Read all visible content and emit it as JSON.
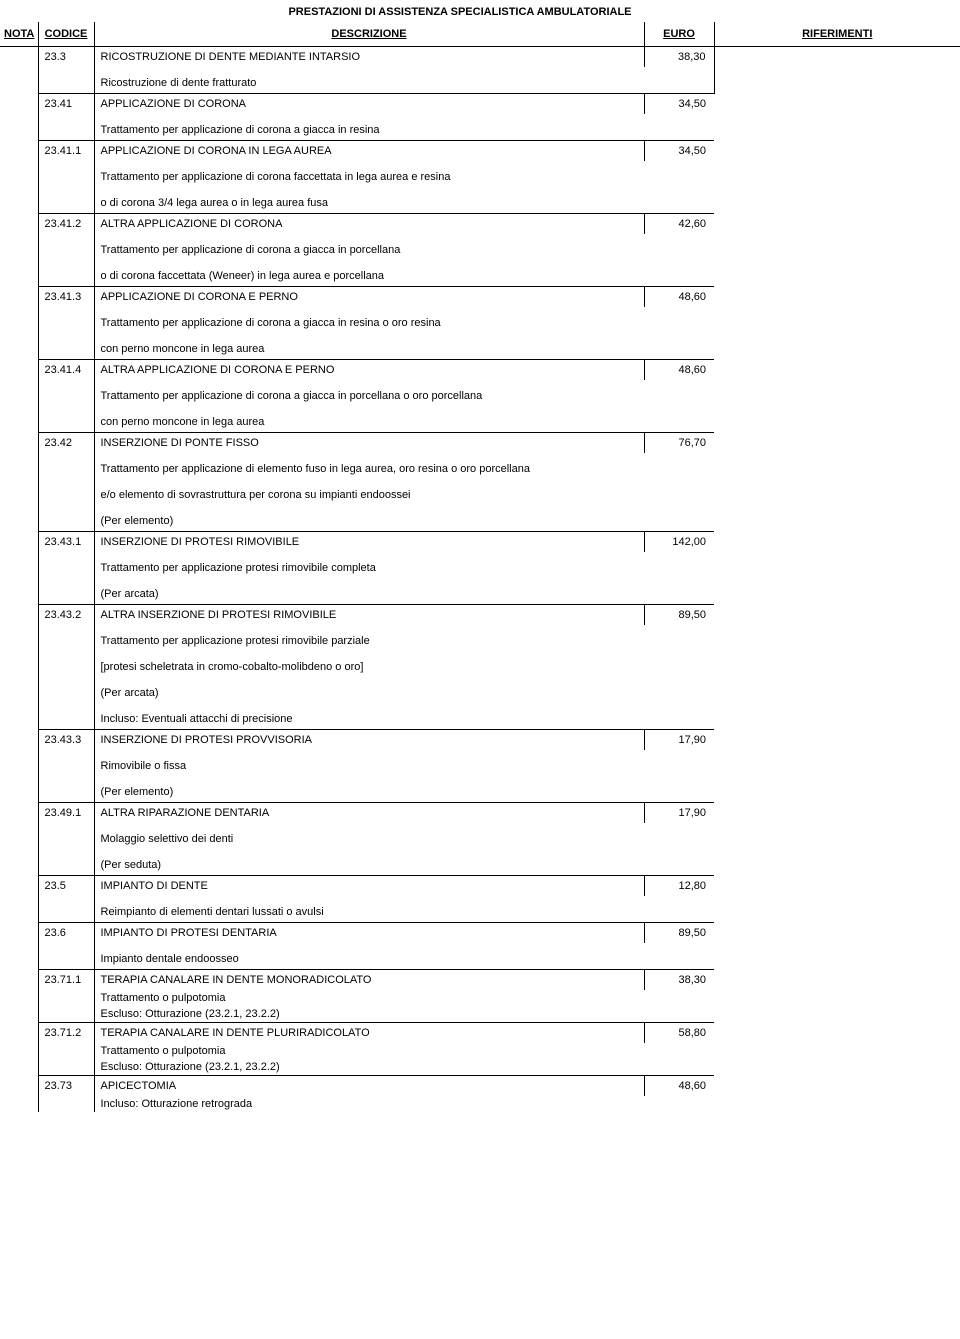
{
  "title": "PRESTAZIONI DI ASSISTENZA SPECIALISTICA AMBULATORIALE",
  "headers": {
    "nota": "NOTA",
    "codice": "CODICE",
    "descrizione": "DESCRIZIONE",
    "euro": "EURO",
    "riferimenti": "RIFERIMENTI"
  },
  "rows": [
    {
      "code": "23.3",
      "desc": "RICOSTRUZIONE DI DENTE MEDIANTE INTARSIO",
      "euro": "38,30",
      "subs": [
        "Ricostruzione di dente fratturato"
      ]
    },
    {
      "code": "23.41",
      "desc": "APPLICAZIONE DI CORONA",
      "euro": "34,50",
      "subs": [
        "Trattamento per applicazione di corona a giacca in resina"
      ]
    },
    {
      "code": "23.41.1",
      "desc": "APPLICAZIONE DI CORONA IN LEGA AUREA",
      "euro": "34,50",
      "subs": [
        "Trattamento per applicazione di corona faccettata in lega aurea e resina",
        "o di corona 3/4 lega aurea o in lega aurea fusa"
      ]
    },
    {
      "code": "23.41.2",
      "desc": "ALTRA APPLICAZIONE DI CORONA",
      "euro": "42,60",
      "subs": [
        "Trattamento per applicazione di corona a giacca in porcellana",
        "o di corona faccettata (Weneer) in lega aurea e porcellana"
      ]
    },
    {
      "code": "23.41.3",
      "desc": "APPLICAZIONE DI CORONA E PERNO",
      "euro": "48,60",
      "subs": [
        "Trattamento per applicazione di corona a giacca in resina o oro resina",
        "con perno moncone in lega aurea"
      ]
    },
    {
      "code": "23.41.4",
      "desc": "ALTRA APPLICAZIONE DI CORONA E PERNO",
      "euro": "48,60",
      "subs": [
        "Trattamento per applicazione di corona a giacca in porcellana o oro porcellana",
        "con perno moncone in lega aurea"
      ]
    },
    {
      "code": "23.42",
      "desc": "INSERZIONE DI PONTE FISSO",
      "euro": "76,70",
      "subs": [
        "Trattamento per applicazione di elemento fuso in lega aurea, oro resina o oro porcellana",
        "e/o elemento di sovrastruttura per corona su impianti endoossei",
        "(Per elemento)"
      ]
    },
    {
      "code": "23.43.1",
      "desc": "INSERZIONE DI PROTESI RIMOVIBILE",
      "euro": "142,00",
      "subs": [
        "Trattamento per applicazione protesi rimovibile completa",
        "(Per arcata)"
      ]
    },
    {
      "code": "23.43.2",
      "desc": "ALTRA INSERZIONE DI PROTESI RIMOVIBILE",
      "euro": "89,50",
      "subs": [
        "Trattamento per applicazione protesi rimovibile parziale",
        "[protesi scheletrata in cromo-cobalto-molibdeno o oro]",
        "(Per arcata)",
        "Incluso: Eventuali attacchi di precisione"
      ]
    },
    {
      "code": "23.43.3",
      "desc": "INSERZIONE DI PROTESI PROVVISORIA",
      "euro": "17,90",
      "subs": [
        "Rimovibile o fissa",
        "(Per elemento)"
      ]
    },
    {
      "code": "23.49.1",
      "desc": "ALTRA RIPARAZIONE DENTARIA",
      "euro": "17,90",
      "subs": [
        "Molaggio selettivo dei denti",
        "(Per seduta)"
      ]
    },
    {
      "code": "23.5",
      "desc": "IMPIANTO DI DENTE",
      "euro": "12,80",
      "subs": [
        "Reimpianto di elementi dentari lussati o avulsi"
      ]
    },
    {
      "code": "23.6",
      "desc": "IMPIANTO DI PROTESI DENTARIA",
      "euro": "89,50",
      "subs": [
        "Impianto dentale endoosseo"
      ]
    },
    {
      "code": "23.71.1",
      "desc": "TERAPIA CANALARE IN DENTE MONORADICOLATO",
      "euro": "38,30",
      "subs_tight": [
        "Trattamento o pulpotomia",
        "Escluso: Otturazione (23.2.1, 23.2.2)"
      ]
    },
    {
      "code": "23.71.2",
      "desc": "TERAPIA CANALARE IN DENTE PLURIRADICOLATO",
      "euro": "58,80",
      "subs_tight": [
        "Trattamento o pulpotomia",
        "Escluso: Otturazione (23.2.1, 23.2.2)"
      ]
    },
    {
      "code": "23.73",
      "desc": "APICECTOMIA",
      "euro": "48,60",
      "subs_tight": [
        "Incluso: Otturazione retrograda"
      ]
    }
  ]
}
